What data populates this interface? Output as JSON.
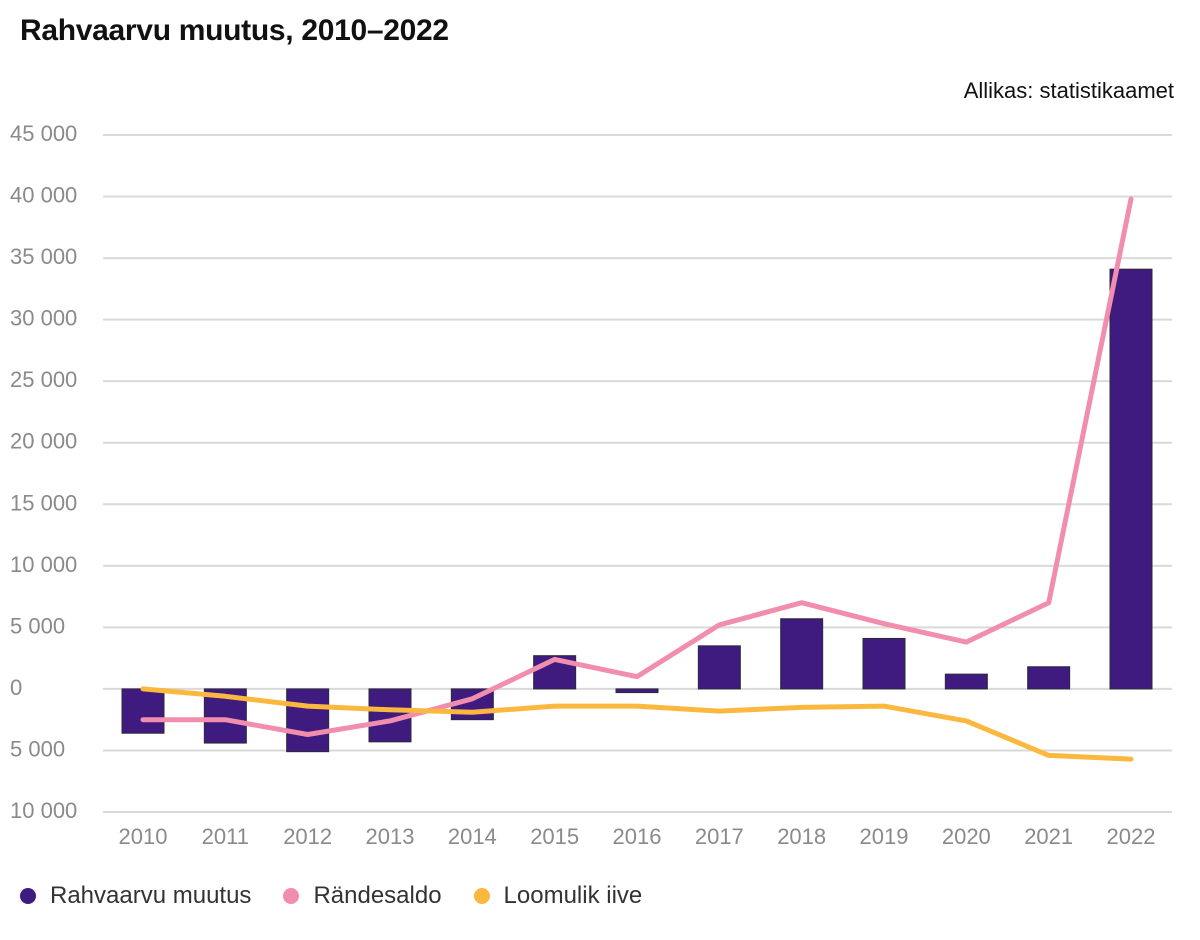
{
  "header": {
    "title": "Rahvaarvu muutus, 2010–2022",
    "source": "Allikas: statistikaamet"
  },
  "chart_data": {
    "type": "bar",
    "categories": [
      "2010",
      "2011",
      "2012",
      "2013",
      "2014",
      "2015",
      "2016",
      "2017",
      "2018",
      "2019",
      "2020",
      "2021",
      "2022"
    ],
    "ylim": [
      -10000,
      45000
    ],
    "yticks": [
      45000,
      40000,
      35000,
      30000,
      25000,
      20000,
      15000,
      10000,
      5000,
      0,
      -5000,
      -10000
    ],
    "ytick_labels": [
      "45 000",
      "40 000",
      "35 000",
      "30 000",
      "25 000",
      "20 000",
      "15 000",
      "10 000",
      "5 000",
      "0",
      "5 000",
      "10 000"
    ],
    "grid": true,
    "series": [
      {
        "name": "Rahvaarvu muutus",
        "kind": "bar",
        "color": "#3f1a7f",
        "values": [
          -3600,
          -4400,
          -5100,
          -4300,
          -2500,
          2700,
          -300,
          3500,
          5700,
          4100,
          1200,
          1800,
          34100
        ]
      },
      {
        "name": "Rändesaldo",
        "kind": "line",
        "color": "#f28ead",
        "values": [
          -2500,
          -2500,
          -3700,
          -2600,
          -800,
          2400,
          1000,
          5200,
          7000,
          5300,
          3800,
          7000,
          39800
        ]
      },
      {
        "name": "Loomulik iive",
        "kind": "line",
        "color": "#fbb83f",
        "values": [
          0,
          -600,
          -1400,
          -1700,
          -1900,
          -1400,
          -1400,
          -1800,
          -1500,
          -1400,
          -2600,
          -5400,
          -5700
        ]
      }
    ],
    "legend_position": "bottom-left"
  }
}
